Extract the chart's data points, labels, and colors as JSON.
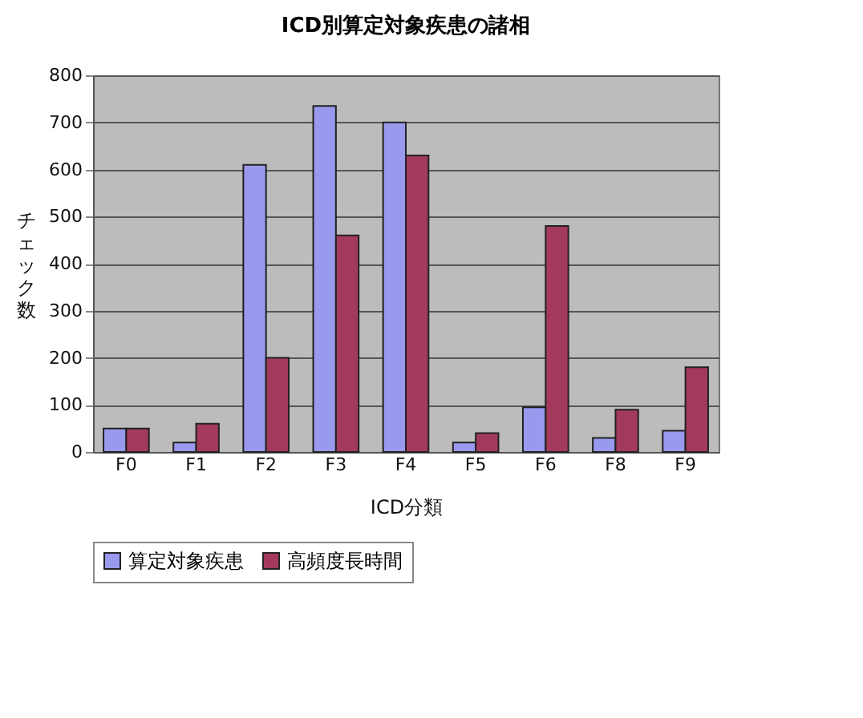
{
  "chart_data": {
    "type": "bar",
    "title": "ICD別算定対象疾患の諸相",
    "xlabel": "ICD分類",
    "ylabel": "チェック数",
    "categories": [
      "F0",
      "F1",
      "F2",
      "F3",
      "F4",
      "F5",
      "F6",
      "F8",
      "F9"
    ],
    "series": [
      {
        "name": "算定対象疾患",
        "color": "#9999ee",
        "values": [
          50,
          20,
          610,
          735,
          700,
          20,
          95,
          30,
          45
        ]
      },
      {
        "name": "高頻度長時間",
        "color": "#a33a5c",
        "values": [
          50,
          60,
          200,
          460,
          630,
          40,
          480,
          90,
          180
        ]
      }
    ],
    "ylim": [
      0,
      800
    ],
    "yticks": [
      0,
      100,
      200,
      300,
      400,
      500,
      600,
      700,
      800
    ],
    "grid": "y",
    "legend": "bottom"
  }
}
